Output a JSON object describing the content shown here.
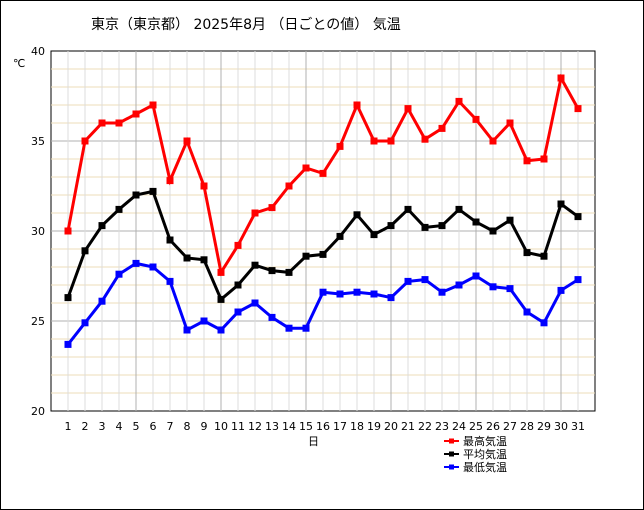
{
  "chart_data": {
    "type": "line",
    "title": "東京（東京都） 2025年8月 （日ごとの値） 気温",
    "xlabel": "日",
    "ylabel": "℃",
    "ylim": [
      20,
      40
    ],
    "yticks": [
      20,
      25,
      30,
      35,
      40
    ],
    "y_minor_step": 1,
    "x": [
      1,
      2,
      3,
      4,
      5,
      6,
      7,
      8,
      9,
      10,
      11,
      12,
      13,
      14,
      15,
      16,
      17,
      18,
      19,
      20,
      21,
      22,
      23,
      24,
      25,
      26,
      27,
      28,
      29,
      30,
      31
    ],
    "grid": true,
    "legend_position": "bottom-right",
    "series": [
      {
        "name": "最高気温",
        "color": "#ff0000",
        "values": [
          30.0,
          35.0,
          36.0,
          36.0,
          36.5,
          37.0,
          32.8,
          35.0,
          32.5,
          27.7,
          29.2,
          31.0,
          31.3,
          32.5,
          33.5,
          33.2,
          34.7,
          37.0,
          35.0,
          35.0,
          36.8,
          35.1,
          35.7,
          37.2,
          36.2,
          35.0,
          36.0,
          33.9,
          34.0,
          38.5,
          36.8
        ]
      },
      {
        "name": "平均気温",
        "color": "#000000",
        "values": [
          26.3,
          28.9,
          30.3,
          31.2,
          32.0,
          32.2,
          29.5,
          28.5,
          28.4,
          26.2,
          27.0,
          28.1,
          27.8,
          27.7,
          28.6,
          28.7,
          29.7,
          30.9,
          29.8,
          30.3,
          31.2,
          30.2,
          30.3,
          31.2,
          30.5,
          30.0,
          30.6,
          28.8,
          28.6,
          31.5,
          30.8
        ]
      },
      {
        "name": "最低気温",
        "color": "#0000ff",
        "values": [
          23.7,
          24.9,
          26.1,
          27.6,
          28.2,
          28.0,
          27.2,
          24.5,
          25.0,
          24.5,
          25.5,
          26.0,
          25.2,
          24.6,
          24.6,
          26.6,
          26.5,
          26.6,
          26.5,
          26.3,
          27.2,
          27.3,
          26.6,
          27.0,
          27.5,
          26.9,
          26.8,
          25.5,
          24.9,
          26.7,
          27.3
        ]
      }
    ]
  }
}
